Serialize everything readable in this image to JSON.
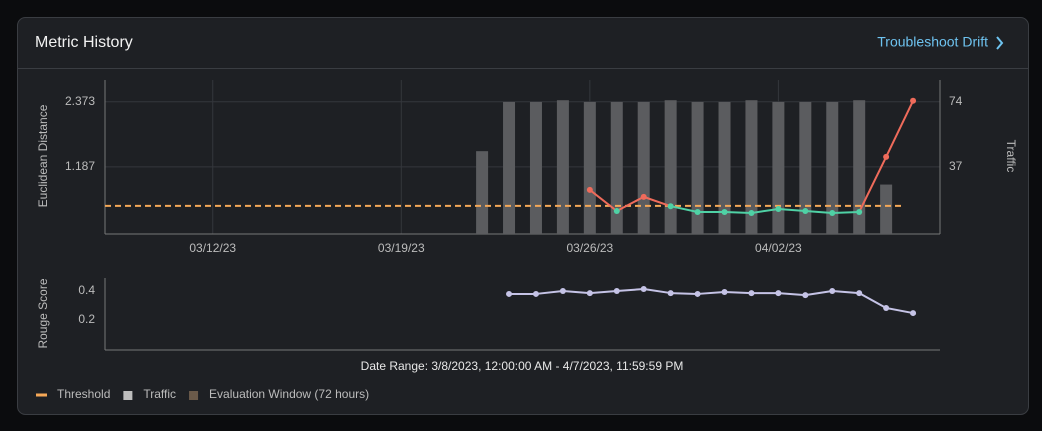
{
  "header": {
    "title": "Metric History",
    "link": "Troubleshoot Drift"
  },
  "chart_data": [
    {
      "type": "combo",
      "y_label": "Euclidean Distance",
      "y2_label": "Traffic",
      "xlim": [
        "03/08/23",
        "04/08/23"
      ],
      "xticks": [
        "03/12/23",
        "03/19/23",
        "03/26/23",
        "04/02/23"
      ],
      "ylim": [
        0,
        2.77
      ],
      "yticks": [
        1.187,
        2.373
      ],
      "y2lim": [
        0,
        86.5
      ],
      "y2ticks": [
        37,
        74
      ],
      "grid": true,
      "threshold": 0.475,
      "threshold_color": "#f5a857",
      "series": [
        {
          "axis": "y2",
          "color": "#5b5c5f",
          "x": [
            "03/22/23",
            "03/23/23",
            "03/24/23",
            "03/25/23",
            "03/26/23",
            "03/27/23",
            "03/28/23",
            "03/29/23",
            "03/30/23",
            "03/31/23",
            "04/01/23",
            "04/02/23",
            "04/03/23",
            "04/04/23",
            "04/05/23",
            "04/06/23"
          ],
          "values": [
            46,
            74,
            74,
            75,
            74,
            74,
            74,
            75,
            74,
            74,
            75,
            74,
            74,
            74,
            75,
            27
          ]
        },
        {
          "color": "#ef6b5b",
          "below_threshold_color": "#4fd1a5",
          "x": [
            "03/26/23",
            "03/27/23",
            "03/28/23",
            "03/29/23",
            "03/30/23",
            "03/31/23",
            "04/01/23",
            "04/02/23",
            "04/03/23",
            "04/04/23",
            "04/05/23",
            "04/06/23",
            "04/07/23"
          ],
          "values": [
            0.767,
            0.383,
            0.64,
            0.47,
            0.365,
            0.365,
            0.347,
            0.42,
            0.383,
            0.347,
            0.365,
            1.369,
            2.391
          ]
        }
      ]
    },
    {
      "type": "line",
      "y_label": "Rouge Score",
      "xlim": [
        "03/08/23",
        "04/08/23"
      ],
      "ylim": [
        0,
        0.49
      ],
      "yticks": [
        0.2,
        0.4
      ],
      "series": [
        {
          "color": "#c5c3e6",
          "x": [
            "03/23/23",
            "03/24/23",
            "03/25/23",
            "03/26/23",
            "03/27/23",
            "03/28/23",
            "03/29/23",
            "03/30/23",
            "03/31/23",
            "04/01/23",
            "04/02/23",
            "04/03/23",
            "04/04/23",
            "04/05/23",
            "04/06/23",
            "04/07/23"
          ],
          "values": [
            0.38,
            0.38,
            0.4,
            0.386,
            0.4,
            0.414,
            0.386,
            0.38,
            0.393,
            0.386,
            0.386,
            0.372,
            0.4,
            0.386,
            0.283,
            0.248
          ]
        }
      ]
    }
  ],
  "date_range": "Date Range: 3/8/2023, 12:00:00 AM - 4/7/2023, 11:59:59 PM",
  "legend": [
    {
      "label": "Threshold",
      "color": "#f5a857"
    },
    {
      "label": "Traffic",
      "color": "#bdbdbd"
    },
    {
      "label": "Evaluation Window (72 hours)",
      "color": "#6b5a4a"
    }
  ]
}
